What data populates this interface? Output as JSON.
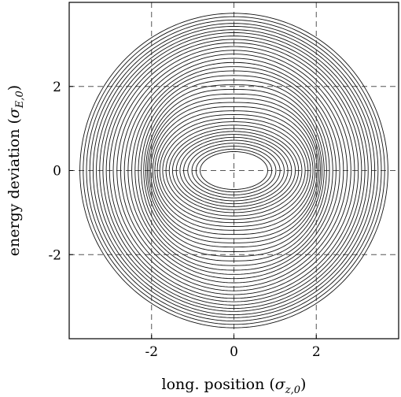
{
  "chart_data": {
    "type": "line",
    "title": "",
    "xlabel": {
      "text": "long. position (",
      "sym": "σ",
      "sub": "z,0",
      "close": ")"
    },
    "ylabel": {
      "text": "energy deviation (",
      "sym": "σ",
      "sub": "E,0",
      "close": ")"
    },
    "xlim": [
      -4.0,
      4.0
    ],
    "ylim": [
      -4.0,
      4.0
    ],
    "xticks": [
      -2,
      0,
      2
    ],
    "yticks": [
      -2,
      0,
      2
    ],
    "xtick_labels": [
      "-2",
      "0",
      "2"
    ],
    "ytick_labels": [
      "-2",
      "0",
      "2"
    ],
    "grid": true,
    "description_of_series": "nested closed contour curves of constant energy; inner curves are ellipses, outer curves approach circles",
    "series": [
      {
        "level": 0.7,
        "x_half_width": 0.82,
        "y_half_height": 0.45
      },
      {
        "level": 0.78,
        "x_half_width": 0.92,
        "y_half_height": 0.51
      },
      {
        "level": 0.86,
        "x_half_width": 1.02,
        "y_half_height": 0.58
      },
      {
        "level": 0.94,
        "x_half_width": 1.12,
        "y_half_height": 0.65
      },
      {
        "level": 1.02,
        "x_half_width": 1.22,
        "y_half_height": 0.72
      },
      {
        "level": 1.1,
        "x_half_width": 1.31,
        "y_half_height": 0.79
      },
      {
        "level": 1.18,
        "x_half_width": 1.4,
        "y_half_height": 0.86
      },
      {
        "level": 1.26,
        "x_half_width": 1.49,
        "y_half_height": 0.93
      },
      {
        "level": 1.34,
        "x_half_width": 1.57,
        "y_half_height": 1.0
      },
      {
        "level": 1.42,
        "x_half_width": 1.65,
        "y_half_height": 1.08
      },
      {
        "level": 1.5,
        "x_half_width": 1.73,
        "y_half_height": 1.16
      },
      {
        "level": 1.58,
        "x_half_width": 1.8,
        "y_half_height": 1.24
      },
      {
        "level": 1.66,
        "x_half_width": 1.86,
        "y_half_height": 1.33
      },
      {
        "level": 1.74,
        "x_half_width": 1.92,
        "y_half_height": 1.42
      },
      {
        "level": 1.82,
        "x_half_width": 1.97,
        "y_half_height": 1.52
      },
      {
        "level": 1.9,
        "x_half_width": 2.02,
        "y_half_height": 1.62
      },
      {
        "level": 1.98,
        "x_half_width": 2.06,
        "y_half_height": 1.72
      },
      {
        "level": 2.06,
        "x_half_width": 2.1,
        "y_half_height": 1.82
      },
      {
        "level": 2.14,
        "x_half_width": 2.14,
        "y_half_height": 1.93
      },
      {
        "level": 2.22,
        "x_half_width": 2.19,
        "y_half_height": 2.04
      },
      {
        "level": 2.3,
        "x_half_width": 2.25,
        "y_half_height": 2.15
      },
      {
        "level": 2.38,
        "x_half_width": 2.32,
        "y_half_height": 2.26
      },
      {
        "level": 2.46,
        "x_half_width": 2.4,
        "y_half_height": 2.37
      },
      {
        "level": 2.54,
        "x_half_width": 2.48,
        "y_half_height": 2.47
      },
      {
        "level": 2.62,
        "x_half_width": 2.57,
        "y_half_height": 2.57
      },
      {
        "level": 2.7,
        "x_half_width": 2.66,
        "y_half_height": 2.67
      },
      {
        "level": 2.78,
        "x_half_width": 2.75,
        "y_half_height": 2.77
      },
      {
        "level": 2.86,
        "x_half_width": 2.84,
        "y_half_height": 2.86
      },
      {
        "level": 2.94,
        "x_half_width": 2.93,
        "y_half_height": 2.95
      },
      {
        "level": 3.02,
        "x_half_width": 3.02,
        "y_half_height": 3.04
      },
      {
        "level": 3.1,
        "x_half_width": 3.1,
        "y_half_height": 3.12
      },
      {
        "level": 3.18,
        "x_half_width": 3.18,
        "y_half_height": 3.2
      },
      {
        "level": 3.26,
        "x_half_width": 3.26,
        "y_half_height": 3.28
      },
      {
        "level": 3.34,
        "x_half_width": 3.34,
        "y_half_height": 3.35
      },
      {
        "level": 3.42,
        "x_half_width": 3.42,
        "y_half_height": 3.43
      },
      {
        "level": 3.5,
        "x_half_width": 3.5,
        "y_half_height": 3.5
      },
      {
        "level": 3.58,
        "x_half_width": 3.58,
        "y_half_height": 3.58
      },
      {
        "level": 3.66,
        "x_half_width": 3.66,
        "y_half_height": 3.66
      },
      {
        "level": 3.74,
        "x_half_width": 3.74,
        "y_half_height": 3.74
      }
    ],
    "colors": {
      "line": "#111111",
      "grid": "#555555",
      "frame": "#000000"
    }
  }
}
